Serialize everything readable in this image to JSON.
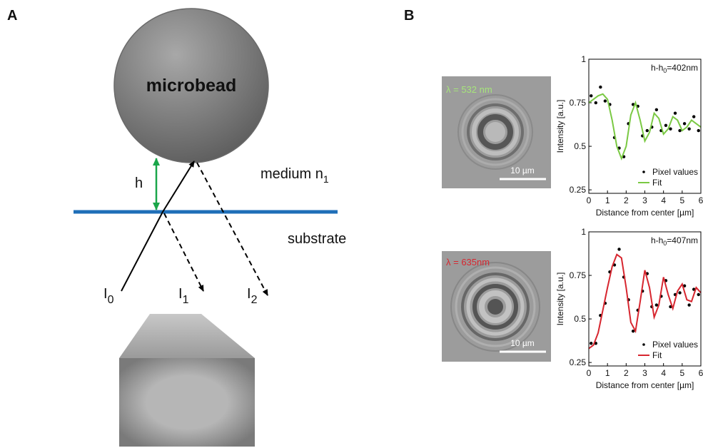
{
  "panel_a": {
    "label": "A",
    "bead": "microbead",
    "gap": "h",
    "medium": {
      "text": "medium n",
      "sub": "1"
    },
    "substrate": "substrate",
    "beams": [
      {
        "text": "I",
        "sub": "0"
      },
      {
        "text": "I",
        "sub": "1"
      },
      {
        "text": "I",
        "sub": "2"
      }
    ]
  },
  "panel_b": {
    "label": "B",
    "images": [
      {
        "wavelength": "λ = 532 nm",
        "scale": "10 µm",
        "color": "#a6e57a"
      },
      {
        "wavelength": "λ = 635nm",
        "scale": "10 µm",
        "color": "#d7262f"
      }
    ]
  },
  "chart_data": [
    {
      "type": "line",
      "annotation": {
        "text": "h-h",
        "sub": "0",
        "suffix": "=402nm"
      },
      "xlabel": "Distance from center [µm]",
      "ylabel": "Intensity [a.u.]",
      "xlim": [
        0,
        6
      ],
      "xticks": [
        0,
        1,
        2,
        3,
        4,
        5,
        6
      ],
      "ylim": [
        0.23,
        1
      ],
      "yticks": [
        0.25,
        0.5,
        0.75,
        1
      ],
      "legend": "lower right",
      "series": [
        {
          "name": "Pixel values",
          "type": "scatter",
          "color": "#000000",
          "x": [
            0.125,
            0.375,
            0.625,
            0.875,
            1.125,
            1.375,
            1.625,
            1.875,
            2.125,
            2.375,
            2.625,
            2.875,
            3.125,
            3.375,
            3.625,
            3.875,
            4.125,
            4.375,
            4.625,
            4.875,
            5.125,
            5.375,
            5.625,
            5.875
          ],
          "values": [
            0.79,
            0.75,
            0.84,
            0.76,
            0.74,
            0.55,
            0.49,
            0.44,
            0.63,
            0.74,
            0.73,
            0.56,
            0.59,
            0.61,
            0.71,
            0.59,
            0.62,
            0.6,
            0.69,
            0.59,
            0.63,
            0.6,
            0.67,
            0.59
          ]
        },
        {
          "name": "Fit",
          "type": "line",
          "color": "#7ac943",
          "x": [
            0,
            0.25,
            0.5,
            0.75,
            1,
            1.25,
            1.5,
            1.75,
            2,
            2.25,
            2.5,
            2.75,
            3,
            3.25,
            3.5,
            3.75,
            4,
            4.25,
            4.5,
            4.75,
            5,
            5.25,
            5.5,
            5.75,
            6
          ],
          "values": [
            0.75,
            0.77,
            0.79,
            0.8,
            0.77,
            0.65,
            0.5,
            0.43,
            0.5,
            0.68,
            0.75,
            0.65,
            0.53,
            0.58,
            0.69,
            0.66,
            0.57,
            0.6,
            0.67,
            0.65,
            0.59,
            0.61,
            0.65,
            0.63,
            0.61
          ]
        }
      ]
    },
    {
      "type": "line",
      "annotation": {
        "text": "h-h",
        "sub": "0",
        "suffix": "=407nm"
      },
      "xlabel": "Distance from center [µm]",
      "ylabel": "Intensity [a.u.]",
      "xlim": [
        0,
        6
      ],
      "xticks": [
        0,
        1,
        2,
        3,
        4,
        5,
        6
      ],
      "ylim": [
        0.23,
        1
      ],
      "yticks": [
        0.25,
        0.5,
        0.75,
        1
      ],
      "legend": "lower right",
      "series": [
        {
          "name": "Pixel values",
          "type": "scatter",
          "color": "#000000",
          "x": [
            0.125,
            0.375,
            0.625,
            0.875,
            1.125,
            1.375,
            1.625,
            1.875,
            2.125,
            2.375,
            2.625,
            2.875,
            3.125,
            3.375,
            3.625,
            3.875,
            4.125,
            4.375,
            4.625,
            4.875,
            5.125,
            5.375,
            5.625,
            5.875
          ],
          "values": [
            0.36,
            0.36,
            0.52,
            0.59,
            0.77,
            0.81,
            0.9,
            0.74,
            0.61,
            0.43,
            0.55,
            0.66,
            0.76,
            0.57,
            0.58,
            0.63,
            0.72,
            0.57,
            0.64,
            0.65,
            0.69,
            0.58,
            0.67,
            0.64
          ]
        },
        {
          "name": "Fit",
          "type": "line",
          "color": "#d7262f",
          "x": [
            0,
            0.25,
            0.5,
            0.75,
            1,
            1.25,
            1.5,
            1.75,
            2,
            2.25,
            2.5,
            2.75,
            3,
            3.25,
            3.5,
            3.75,
            4,
            4.25,
            4.5,
            4.75,
            5,
            5.25,
            5.5,
            5.75,
            6
          ],
          "values": [
            0.33,
            0.35,
            0.42,
            0.55,
            0.68,
            0.8,
            0.87,
            0.85,
            0.68,
            0.48,
            0.43,
            0.6,
            0.78,
            0.68,
            0.51,
            0.58,
            0.74,
            0.64,
            0.56,
            0.66,
            0.7,
            0.61,
            0.6,
            0.68,
            0.65
          ]
        }
      ]
    }
  ]
}
